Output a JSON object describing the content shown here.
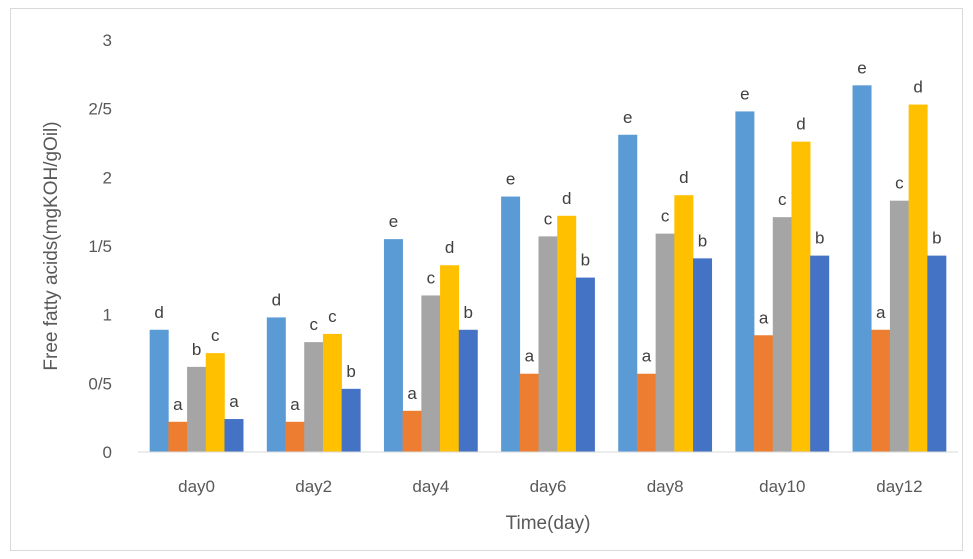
{
  "chart_data": {
    "type": "bar",
    "categories": [
      "day0",
      "day2",
      "day4",
      "day6",
      "day8",
      "day10",
      "day12"
    ],
    "series": [
      {
        "color": "#5B9BD5",
        "values": [
          0.89,
          0.98,
          1.55,
          1.86,
          2.31,
          2.48,
          2.67
        ],
        "labels": [
          "d",
          "d",
          "e",
          "e",
          "e",
          "e",
          "e"
        ]
      },
      {
        "color": "#ED7D31",
        "values": [
          0.22,
          0.22,
          0.3,
          0.57,
          0.57,
          0.85,
          0.89
        ],
        "labels": [
          "a",
          "a",
          "a",
          "a",
          "a",
          "a",
          "a"
        ]
      },
      {
        "color": "#A5A5A5",
        "values": [
          0.62,
          0.8,
          1.14,
          1.57,
          1.59,
          1.71,
          1.83
        ],
        "labels": [
          "b",
          "c",
          "c",
          "c",
          "c",
          "c",
          "c"
        ]
      },
      {
        "color": "#FFC000",
        "values": [
          0.72,
          0.86,
          1.36,
          1.72,
          1.87,
          2.26,
          2.53
        ],
        "labels": [
          "c",
          "c",
          "d",
          "d",
          "d",
          "d",
          "d"
        ]
      },
      {
        "color": "#4472C4",
        "values": [
          0.24,
          0.46,
          0.89,
          1.27,
          1.41,
          1.43,
          1.43
        ],
        "labels": [
          "a",
          "b",
          "b",
          "b",
          "b",
          "b",
          "b"
        ]
      }
    ],
    "yticks": [
      "0",
      "0/5",
      "1",
      "1/5",
      "2",
      "2/5",
      "3"
    ],
    "ylim": [
      0,
      3
    ],
    "xlabel": "Time(day)",
    "ylabel": "Free fatty acids(mgKOH/gOil)",
    "grid": false,
    "legend": "none"
  }
}
